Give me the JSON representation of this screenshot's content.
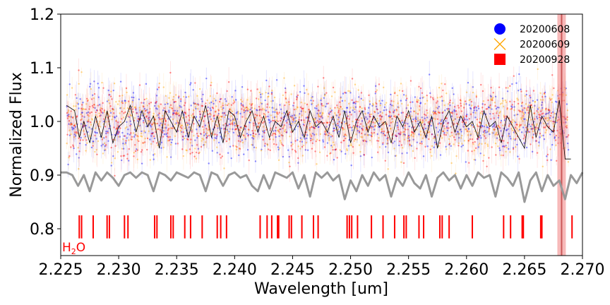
{
  "chart_data": {
    "type": "scatter",
    "title": "",
    "xlabel": "Wavelength [um]",
    "ylabel": "Normalized Flux",
    "xlim": [
      2.225,
      2.27
    ],
    "ylim": [
      0.75,
      1.2
    ],
    "xticks": [
      "2.225",
      "2.230",
      "2.235",
      "2.240",
      "2.245",
      "2.250",
      "2.255",
      "2.260",
      "2.265",
      "2.270"
    ],
    "yticks": [
      "0.8",
      "0.9",
      "1.0",
      "1.1",
      "1.2"
    ],
    "grid": false,
    "legend_position": "top-right",
    "series": [
      {
        "name": "20200608",
        "marker": "circle",
        "color": "#0000ff"
      },
      {
        "name": "20200609",
        "marker": "x",
        "color": "#ffa500"
      },
      {
        "name": "20200928",
        "marker": "square",
        "color": "#ff0000"
      }
    ],
    "model_line": {
      "color": "#000000",
      "x": [
        2.2255,
        2.2262,
        2.2266,
        2.227,
        2.2275,
        2.228,
        2.2285,
        2.229,
        2.2295,
        2.23,
        2.2305,
        2.231,
        2.2315,
        2.232,
        2.2325,
        2.233,
        2.2335,
        2.234,
        2.2345,
        2.235,
        2.2355,
        2.236,
        2.2365,
        2.237,
        2.2375,
        2.238,
        2.2385,
        2.239,
        2.2395,
        2.24,
        2.2405,
        2.241,
        2.2415,
        2.242,
        2.2425,
        2.243,
        2.2435,
        2.244,
        2.2445,
        2.245,
        2.2455,
        2.246,
        2.2465,
        2.247,
        2.2475,
        2.248,
        2.2485,
        2.249,
        2.2495,
        2.25,
        2.2505,
        2.251,
        2.2515,
        2.252,
        2.2525,
        2.253,
        2.2535,
        2.254,
        2.2545,
        2.255,
        2.2555,
        2.256,
        2.2565,
        2.257,
        2.2575,
        2.258,
        2.2585,
        2.259,
        2.2595,
        2.26,
        2.2605,
        2.261,
        2.2615,
        2.262,
        2.2625,
        2.263,
        2.2635,
        2.264,
        2.2645,
        2.265,
        2.2655,
        2.266,
        2.2665,
        2.267,
        2.2675,
        2.268,
        2.2685,
        2.269
      ],
      "y": [
        1.03,
        1.02,
        0.97,
        1.0,
        0.96,
        1.01,
        0.97,
        1.02,
        0.96,
        0.99,
        1.0,
        1.03,
        0.98,
        1.02,
        0.99,
        1.01,
        0.95,
        1.02,
        1.0,
        0.98,
        1.02,
        0.97,
        1.01,
        0.99,
        1.03,
        0.97,
        1.01,
        0.96,
        1.02,
        1.01,
        0.97,
        1.0,
        1.02,
        0.98,
        1.01,
        0.97,
        1.0,
        0.99,
        1.02,
        0.98,
        1.0,
        0.97,
        1.02,
        0.99,
        1.0,
        0.98,
        1.01,
        0.97,
        1.02,
        0.96,
        1.0,
        1.02,
        0.98,
        1.01,
        0.99,
        1.0,
        0.96,
        1.01,
        0.99,
        1.02,
        0.98,
        1.0,
        0.97,
        1.01,
        0.95,
        1.0,
        1.02,
        0.98,
        1.01,
        0.99,
        1.0,
        0.97,
        1.02,
        0.99,
        1.0,
        0.96,
        1.01,
        0.99,
        0.97,
        0.95,
        1.03,
        0.97,
        1.01,
        0.99,
        0.98,
        1.04,
        0.93,
        0.93
      ]
    },
    "telluric_line": {
      "color": "#999999",
      "x": [
        2.225,
        2.2255,
        2.226,
        2.2265,
        2.227,
        2.2275,
        2.228,
        2.2285,
        2.229,
        2.2295,
        2.23,
        2.2305,
        2.231,
        2.2315,
        2.232,
        2.2325,
        2.233,
        2.2335,
        2.234,
        2.2345,
        2.235,
        2.2355,
        2.236,
        2.2365,
        2.237,
        2.2375,
        2.238,
        2.2385,
        2.239,
        2.2395,
        2.24,
        2.2405,
        2.241,
        2.2415,
        2.242,
        2.2425,
        2.243,
        2.2435,
        2.244,
        2.2445,
        2.245,
        2.2455,
        2.246,
        2.2465,
        2.247,
        2.2475,
        2.248,
        2.2485,
        2.249,
        2.2495,
        2.25,
        2.2505,
        2.251,
        2.2515,
        2.252,
        2.2525,
        2.253,
        2.2535,
        2.254,
        2.2545,
        2.255,
        2.2555,
        2.256,
        2.2565,
        2.257,
        2.2575,
        2.258,
        2.2585,
        2.259,
        2.2595,
        2.26,
        2.2605,
        2.261,
        2.2615,
        2.262,
        2.2625,
        2.263,
        2.2635,
        2.264,
        2.2645,
        2.265,
        2.2655,
        2.266,
        2.2665,
        2.267,
        2.2675,
        2.268,
        2.2685,
        2.269,
        2.2695,
        2.27
      ],
      "y": [
        0.905,
        0.905,
        0.9,
        0.88,
        0.9,
        0.87,
        0.905,
        0.89,
        0.905,
        0.895,
        0.88,
        0.9,
        0.905,
        0.895,
        0.905,
        0.9,
        0.87,
        0.905,
        0.9,
        0.89,
        0.905,
        0.9,
        0.895,
        0.905,
        0.9,
        0.87,
        0.905,
        0.9,
        0.88,
        0.9,
        0.905,
        0.895,
        0.9,
        0.88,
        0.87,
        0.9,
        0.875,
        0.905,
        0.9,
        0.895,
        0.905,
        0.875,
        0.9,
        0.86,
        0.905,
        0.895,
        0.905,
        0.89,
        0.9,
        0.855,
        0.89,
        0.87,
        0.9,
        0.88,
        0.905,
        0.89,
        0.9,
        0.86,
        0.895,
        0.88,
        0.905,
        0.885,
        0.875,
        0.9,
        0.86,
        0.895,
        0.905,
        0.89,
        0.9,
        0.875,
        0.9,
        0.88,
        0.905,
        0.895,
        0.9,
        0.86,
        0.905,
        0.895,
        0.88,
        0.905,
        0.85,
        0.89,
        0.905,
        0.87,
        0.9,
        0.88,
        0.89,
        0.855,
        0.9,
        0.885,
        0.905
      ]
    },
    "h2o_lines": {
      "label_main": "H",
      "label_sub": "2",
      "label_tail": "O",
      "color": "#ff0000",
      "x": [
        2.2266,
        2.2268,
        2.2278,
        2.229,
        2.2292,
        2.2305,
        2.2308,
        2.2331,
        2.2333,
        2.2345,
        2.2347,
        2.2357,
        2.2362,
        2.2372,
        2.2385,
        2.2388,
        2.2393,
        2.2422,
        2.2428,
        2.2432,
        2.2437,
        2.2438,
        2.2447,
        2.2449,
        2.2458,
        2.2468,
        2.2472,
        2.2497,
        2.2499,
        2.2501,
        2.2506,
        2.2518,
        2.2528,
        2.2538,
        2.2546,
        2.2548,
        2.2559,
        2.2563,
        2.2577,
        2.2579,
        2.2585,
        2.2605,
        2.2632,
        2.2638,
        2.2648,
        2.2649,
        2.2664,
        2.2665,
        2.2691
      ]
    },
    "highlight_band": {
      "x_center": 2.2682,
      "color": "#f08080"
    }
  }
}
